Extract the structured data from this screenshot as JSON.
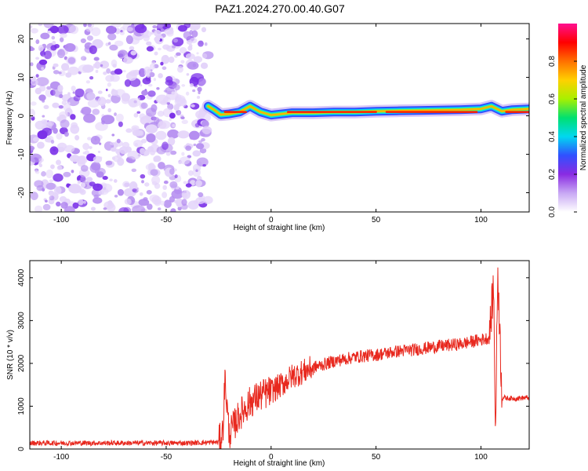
{
  "title": "PAZ1.2024.270.00.40.G07",
  "colors": {
    "snr_line": "#e8281e",
    "low_noise": "#b48cf0",
    "mid_noise": "#7a30e8"
  },
  "colorbar": {
    "label": "Normalized spectral amplitude",
    "ticks": [
      "0.0",
      "0.2",
      "0.4",
      "0.6",
      "0.8"
    ],
    "stops": [
      "#ffffff",
      "#c8a8f4",
      "#8a2be2",
      "#3050ff",
      "#00d8f0",
      "#00e070",
      "#a8f000",
      "#ffd000",
      "#ff7000",
      "#ff0000",
      "#ff1090"
    ]
  },
  "chart_data": [
    {
      "type": "heatmap",
      "title": "PAZ1.2024.270.00.40.G07",
      "xlabel": "Height of straight line (km)",
      "ylabel": "Frequency (Hz)",
      "xlim": [
        -115,
        123
      ],
      "ylim": [
        -25,
        24
      ],
      "xticks": [
        "-100",
        "-50",
        "0",
        "50",
        "100"
      ],
      "yticks": [
        "-20",
        "-10",
        "0",
        "10",
        "20"
      ],
      "noise_region_x": [
        -115,
        -30
      ],
      "signal_track": {
        "x": [
          -30,
          -27,
          -24,
          -20,
          -15,
          -10,
          -5,
          0,
          5,
          10,
          20,
          30,
          40,
          50,
          60,
          70,
          80,
          90,
          100,
          105,
          110,
          115,
          123
        ],
        "frequency": [
          2.5,
          1.5,
          0.3,
          0.5,
          1.0,
          2.5,
          1.0,
          0.2,
          0.5,
          0.8,
          0.8,
          1.0,
          1.0,
          1.2,
          1.3,
          1.4,
          1.5,
          1.6,
          1.8,
          2.5,
          1.2,
          1.6,
          1.8
        ]
      }
    },
    {
      "type": "line",
      "xlabel": "Height of straight line (km)",
      "ylabel": "SNR (10 * v/v)",
      "xlim": [
        -115,
        123
      ],
      "ylim": [
        0,
        4400
      ],
      "xticks": [
        "-100",
        "-50",
        "0",
        "50",
        "100"
      ],
      "yticks": [
        "0",
        "1000",
        "2000",
        "3000",
        "4000"
      ],
      "x": [
        -115,
        -100,
        -80,
        -60,
        -40,
        -25,
        -23,
        -22,
        -20,
        -15,
        -10,
        -5,
        0,
        5,
        10,
        15,
        20,
        30,
        40,
        50,
        60,
        70,
        80,
        90,
        100,
        104,
        106,
        107,
        108,
        110,
        115,
        123
      ],
      "y": [
        140,
        140,
        140,
        140,
        140,
        160,
        400,
        1650,
        350,
        800,
        1100,
        1250,
        1350,
        1500,
        1700,
        1800,
        1900,
        2050,
        2150,
        2200,
        2280,
        2330,
        2400,
        2450,
        2550,
        2600,
        3800,
        350,
        4250,
        1200,
        1180,
        1200
      ]
    }
  ]
}
